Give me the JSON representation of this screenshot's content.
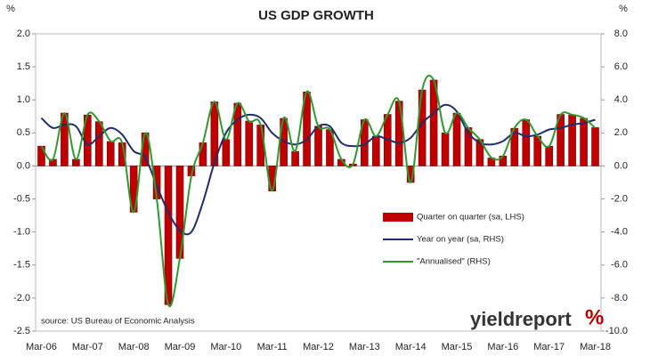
{
  "chart_data": {
    "type": "combo",
    "title": "US GDP GROWTH",
    "y_label": "%",
    "y2_label": "%",
    "source": "source: US Bureau of Economic Analysis",
    "brand": "yieldreport",
    "brand_mark": "%",
    "legend": "lower right",
    "grid": false,
    "categories": [
      "Mar-06",
      null,
      null,
      null,
      "Mar-07",
      null,
      null,
      null,
      "Mar-08",
      null,
      null,
      null,
      "Mar-09",
      null,
      null,
      null,
      "Mar-10",
      null,
      null,
      null,
      "Mar-11",
      null,
      null,
      null,
      "Mar-12",
      null,
      null,
      null,
      "Mar-13",
      null,
      null,
      null,
      "Mar-14",
      null,
      null,
      null,
      "Mar-15",
      null,
      null,
      null,
      "Mar-16",
      null,
      null,
      null,
      "Mar-17",
      null,
      null,
      null,
      "Mar-18"
    ],
    "ylim": [
      -2.5,
      2.0
    ],
    "yticks": [
      {
        "value": 2,
        "label": "2.0"
      },
      1.5,
      {
        "value": 1,
        "label": "1.0"
      },
      0.5,
      {
        "value": 0,
        "label": "0.0"
      },
      -0.5,
      {
        "value": -1,
        "label": "-1.0"
      },
      -1.5,
      {
        "value": -2,
        "label": "-2.0"
      },
      -2.5
    ],
    "y2lim": [
      -10.0,
      8.0
    ],
    "y2ticks": [
      {
        "value": 8,
        "label": "8.0"
      },
      {
        "value": 6,
        "label": "6.0"
      },
      {
        "value": 4,
        "label": "4.0"
      },
      {
        "value": 2,
        "label": "2.0"
      },
      {
        "value": 0,
        "label": "0.0"
      },
      {
        "value": -2,
        "label": "-2.0"
      },
      {
        "value": -4,
        "label": "-4.0"
      },
      {
        "value": -6,
        "label": "-6.0"
      },
      {
        "value": -8,
        "label": "-8.0"
      },
      {
        "value": -10,
        "label": "-10.0"
      }
    ],
    "series": [
      {
        "name": "Quarter on quarter (sa, LHS)",
        "type": "bar",
        "axis": "y",
        "color": "#c00000",
        "values": [
          0.3,
          0.1,
          0.8,
          0.1,
          0.77,
          0.67,
          0.37,
          0.35,
          -0.7,
          0.5,
          -0.5,
          -2.1,
          -1.4,
          -0.15,
          0.35,
          0.97,
          0.4,
          0.95,
          0.68,
          0.62,
          -0.38,
          0.72,
          0.22,
          1.12,
          0.6,
          0.55,
          0.1,
          0.03,
          0.7,
          0.45,
          0.78,
          0.98,
          -0.25,
          1.15,
          1.3,
          0.5,
          0.8,
          0.58,
          0.4,
          0.12,
          0.15,
          0.57,
          0.7,
          0.45,
          0.3,
          0.78,
          0.77,
          0.72,
          0.58
        ]
      },
      {
        "name": "Year on year (sa, RHS)",
        "type": "line",
        "axis": "y2",
        "color": "#1f2d6b",
        "values": [
          2.9,
          2.3,
          2.5,
          2.4,
          1.3,
          1.8,
          2.3,
          1.9,
          0.9,
          0.5,
          -1.2,
          -2.8,
          -3.9,
          -4.0,
          -2.2,
          0.2,
          2.0,
          2.8,
          3.1,
          2.9,
          2.0,
          1.5,
          1.3,
          1.6,
          2.4,
          2.4,
          1.4,
          1.2,
          1.3,
          1.8,
          1.6,
          1.4,
          1.7,
          2.6,
          3.2,
          3.7,
          3.3,
          2.0,
          1.4,
          1.3,
          1.5,
          2.0,
          1.8,
          1.9,
          2.2,
          2.3,
          2.5,
          2.6,
          2.8
        ]
      },
      {
        "name": "\"Annualised\" (RHS)",
        "type": "line",
        "axis": "y2",
        "color": "#2e9a2e",
        "values": [
          1.2,
          0.4,
          3.2,
          0.4,
          3.1,
          2.7,
          1.5,
          1.4,
          -2.8,
          2.0,
          -2.0,
          -8.4,
          -5.6,
          -0.6,
          1.4,
          3.9,
          1.6,
          3.8,
          2.7,
          2.5,
          -1.5,
          2.9,
          0.9,
          4.5,
          2.4,
          2.2,
          0.4,
          0.1,
          2.8,
          1.8,
          3.1,
          3.9,
          -1.0,
          4.6,
          5.2,
          2.0,
          3.2,
          2.3,
          1.6,
          0.5,
          0.6,
          2.3,
          2.8,
          1.8,
          1.2,
          3.1,
          3.1,
          2.9,
          2.3
        ]
      }
    ]
  }
}
